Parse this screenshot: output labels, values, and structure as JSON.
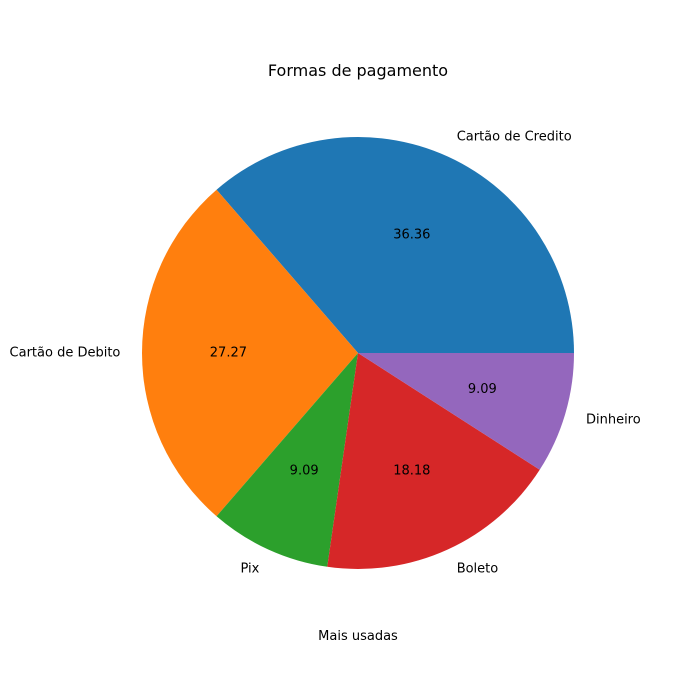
{
  "chart_data": {
    "type": "pie",
    "title": "Formas de pagamento",
    "xlabel": "Mais usadas",
    "labels": [
      "Cartão de Credito",
      "Cartão de Debito",
      "Pix",
      "Boleto",
      "Dinheiro"
    ],
    "values": [
      36.36,
      27.27,
      9.09,
      18.18,
      9.09
    ],
    "value_labels": [
      "36.36",
      "27.27",
      "9.09",
      "18.18",
      "9.09"
    ],
    "colors": [
      "#1f77b4",
      "#ff7f0e",
      "#2ca02c",
      "#d62728",
      "#9467bd"
    ]
  }
}
